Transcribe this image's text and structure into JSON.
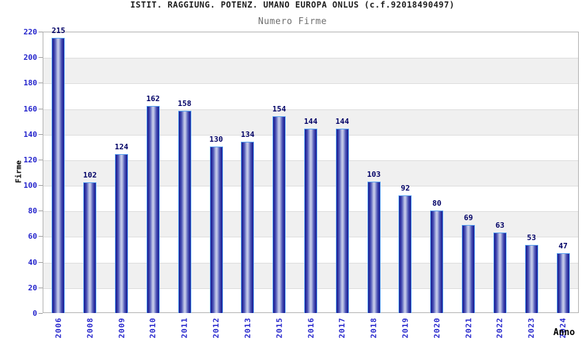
{
  "chart_data": {
    "type": "bar",
    "title": "ISTIT. RAGGIUNG. POTENZ. UMANO EUROPA ONLUS (c.f.92018490497)",
    "subtitle": "Numero Firme",
    "xlabel": "Anno",
    "ylabel": "Firme",
    "categories": [
      "2006",
      "2008",
      "2009",
      "2010",
      "2011",
      "2012",
      "2013",
      "2015",
      "2016",
      "2017",
      "2018",
      "2019",
      "2020",
      "2021",
      "2022",
      "2023",
      "2024"
    ],
    "values": [
      215,
      102,
      124,
      162,
      158,
      130,
      134,
      154,
      144,
      144,
      103,
      92,
      80,
      69,
      63,
      53,
      47
    ],
    "ylim": [
      0,
      220
    ],
    "ytick_step": 20,
    "grid": "horizontal-gridlines-with-alternating-bands",
    "legend_position": "none",
    "colors": {
      "title": "#1f1f1f",
      "subtitle": "#6e6e6e",
      "axis_title": "#000000",
      "tick_label": "#2424cc",
      "category_label": "#2424cc",
      "value_label": "#000066",
      "band": "#f0f0f0",
      "gridline": "#dcdcdc",
      "plot_border": "#b0b0b0",
      "axis_tick": "#999999",
      "bar_edge_dark": "#15158f",
      "bar_mid": "#4a52b5",
      "bar_center_light": "#c2c8e8",
      "bar_outline": "#55a0f0",
      "background": "#ffffff"
    }
  }
}
